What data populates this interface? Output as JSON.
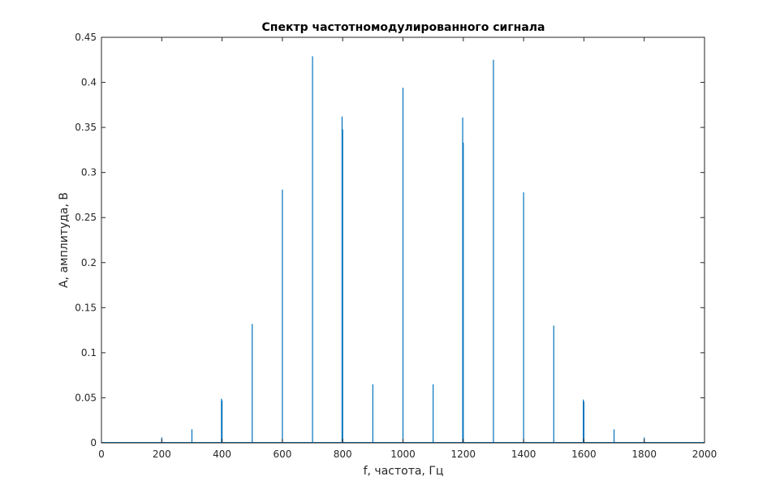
{
  "chart_data": {
    "type": "bar",
    "title": "Спектр частотномодулированного сигнала",
    "xlabel": "f, частота, Гц",
    "ylabel": "А, амплитуда, В",
    "xlim": [
      0,
      2000
    ],
    "ylim": [
      0,
      0.45
    ],
    "xticks": [
      0,
      200,
      400,
      600,
      800,
      1000,
      1200,
      1400,
      1600,
      1800,
      2000
    ],
    "yticks": [
      0,
      0.05,
      0.1,
      0.15,
      0.2,
      0.25,
      0.3,
      0.35,
      0.4,
      0.45
    ],
    "xtick_labels": [
      "0",
      "200",
      "400",
      "600",
      "800",
      "1000",
      "1200",
      "1400",
      "1600",
      "1800",
      "2000"
    ],
    "ytick_labels": [
      "0",
      "0.05",
      "0.1",
      "0.15",
      "0.2",
      "0.25",
      "0.3",
      "0.35",
      "0.4",
      "0.45"
    ],
    "grid": false,
    "color": "#0072BD",
    "series": [
      {
        "x": [
          200,
          300,
          398,
          400,
          500,
          600,
          700,
          798,
          800,
          900,
          1000,
          1100,
          1198,
          1200,
          1300,
          1400,
          1500,
          1598,
          1600,
          1700,
          1800
        ],
        "values": [
          0.006,
          0.015,
          0.049,
          0.047,
          0.132,
          0.281,
          0.429,
          0.362,
          0.348,
          0.065,
          0.394,
          0.065,
          0.361,
          0.333,
          0.425,
          0.278,
          0.13,
          0.048,
          0.046,
          0.015,
          0.006
        ]
      }
    ]
  }
}
